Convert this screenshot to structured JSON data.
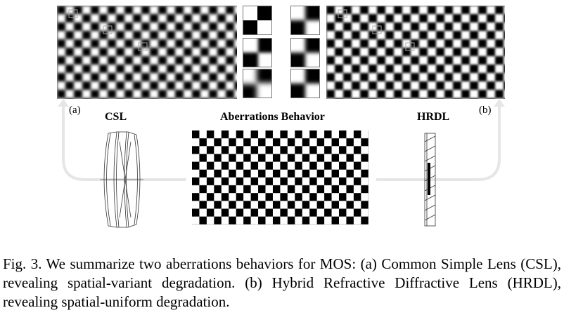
{
  "labels": {
    "a": "(a)",
    "b": "(b)",
    "csl": "CSL",
    "hrdl": "HRDL",
    "aberrations": "Aberrations Behavior"
  },
  "caption": "Fig. 3.  We summarize two aberrations behaviors for MOS: (a) Common Simple Lens (CSL), revealing spatial-variant degradation. (b) Hybrid Refractive Diffractive Lens (HRDL), revealing spatial-uniform degradation."
}
